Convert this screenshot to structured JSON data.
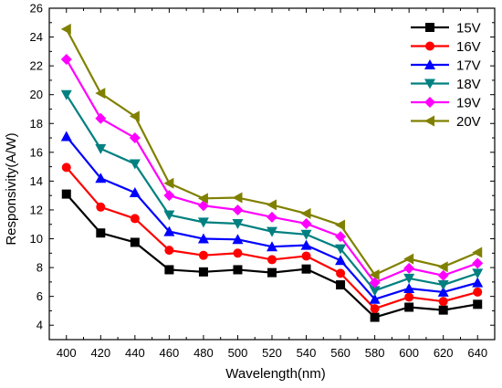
{
  "chart_data": {
    "type": "line",
    "xlabel": "Wavelength(nm)",
    "ylabel": "Responsivity(A/W)",
    "xlim": [
      390,
      650
    ],
    "ylim": [
      3,
      26
    ],
    "x": [
      400,
      420,
      440,
      460,
      480,
      500,
      520,
      540,
      560,
      580,
      600,
      620,
      640
    ],
    "x_ticks": [
      400,
      420,
      440,
      460,
      480,
      500,
      520,
      540,
      560,
      580,
      600,
      620,
      640
    ],
    "y_ticks": [
      4,
      6,
      8,
      10,
      12,
      14,
      16,
      18,
      20,
      22,
      24,
      26
    ],
    "grid": false,
    "legend_position": "top-right",
    "series": [
      {
        "name": "15V",
        "color": "#000000",
        "marker": "square",
        "values": [
          13.1,
          10.4,
          9.75,
          7.85,
          7.7,
          7.85,
          7.65,
          7.9,
          6.8,
          4.55,
          5.25,
          5.05,
          5.45
        ]
      },
      {
        "name": "16V",
        "color": "#ff0000",
        "marker": "circle",
        "values": [
          14.95,
          12.2,
          11.4,
          9.2,
          8.85,
          9.0,
          8.55,
          8.8,
          7.6,
          5.15,
          5.95,
          5.65,
          6.3
        ]
      },
      {
        "name": "17V",
        "color": "#0000ff",
        "marker": "triangle-up",
        "values": [
          17.1,
          14.2,
          13.2,
          10.5,
          10.0,
          9.95,
          9.45,
          9.55,
          8.5,
          5.8,
          6.55,
          6.3,
          6.95
        ]
      },
      {
        "name": "18V",
        "color": "#008080",
        "marker": "triangle-down",
        "values": [
          20.0,
          16.25,
          15.2,
          11.65,
          11.15,
          11.05,
          10.5,
          10.3,
          9.3,
          6.4,
          7.25,
          6.8,
          7.6
        ]
      },
      {
        "name": "19V",
        "color": "#ff00ff",
        "marker": "diamond",
        "values": [
          22.45,
          18.35,
          17.0,
          13.0,
          12.3,
          12.0,
          11.5,
          11.05,
          10.15,
          6.95,
          7.95,
          7.45,
          8.3
        ]
      },
      {
        "name": "20V",
        "color": "#808000",
        "marker": "triangle-left",
        "values": [
          24.55,
          20.1,
          18.5,
          13.85,
          12.8,
          12.85,
          12.35,
          11.75,
          10.95,
          7.5,
          8.6,
          8.05,
          9.05
        ]
      }
    ]
  }
}
